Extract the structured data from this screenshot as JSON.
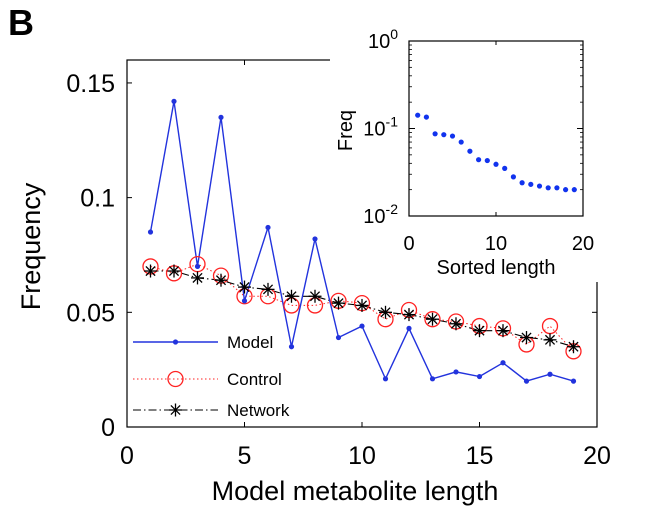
{
  "panel_label": "B",
  "chart_data": [
    {
      "type": "line",
      "xlabel": "Model metabolite length",
      "ylabel": "Frequency",
      "xlim": [
        0,
        20
      ],
      "ylim": [
        0,
        0.16
      ],
      "xticks": [
        0,
        5,
        10,
        15,
        20
      ],
      "yticks": [
        0,
        0.05,
        0.1,
        0.15
      ],
      "ytick_labels": [
        "0",
        "0.05",
        "0.1",
        "0.15"
      ],
      "grid": false,
      "legend_position": "bottom-left",
      "legend": [
        "Model",
        "Control",
        "Network"
      ],
      "x": [
        1,
        2,
        3,
        4,
        5,
        6,
        7,
        8,
        9,
        10,
        11,
        12,
        13,
        14,
        15,
        16,
        17,
        18,
        19
      ],
      "series": [
        {
          "name": "Model",
          "color": "#2233dd",
          "style": "solid line with dot markers",
          "values": [
            0.085,
            0.142,
            0.07,
            0.135,
            0.055,
            0.087,
            0.035,
            0.082,
            0.039,
            0.044,
            0.021,
            0.043,
            0.021,
            0.024,
            0.022,
            0.028,
            0.02,
            0.023,
            0.02
          ]
        },
        {
          "name": "Control",
          "color": "#ff2222",
          "style": "dotted line with circle markers",
          "values": [
            0.07,
            0.067,
            0.071,
            0.066,
            0.057,
            0.057,
            0.053,
            0.053,
            0.055,
            0.054,
            0.047,
            0.051,
            0.047,
            0.046,
            0.044,
            0.043,
            0.036,
            0.044,
            0.033
          ]
        },
        {
          "name": "Network",
          "color": "#000000",
          "style": "dash-dot line with asterisk markers",
          "values": [
            0.068,
            0.068,
            0.065,
            0.064,
            0.061,
            0.06,
            0.057,
            0.057,
            0.054,
            0.053,
            0.05,
            0.049,
            0.047,
            0.045,
            0.042,
            0.042,
            0.039,
            0.038,
            0.035
          ]
        }
      ]
    },
    {
      "type": "scatter",
      "inset": true,
      "xlabel": "Sorted length",
      "ylabel": "Freq",
      "xlim": [
        0,
        20
      ],
      "ylim": [
        0.01,
        1
      ],
      "yscale": "log",
      "xticks": [
        0,
        10,
        20
      ],
      "ytick_labels": [
        {
          "base": "10",
          "exp": "0",
          "value": 1
        },
        {
          "base": "10",
          "exp": "-1",
          "value": 0.1
        },
        {
          "base": "10",
          "exp": "-2",
          "value": 0.01
        }
      ],
      "grid": false,
      "color": "#1133ee",
      "x": [
        1,
        2,
        3,
        4,
        5,
        6,
        7,
        8,
        9,
        10,
        11,
        12,
        13,
        14,
        15,
        16,
        17,
        18,
        19
      ],
      "values": [
        0.142,
        0.135,
        0.087,
        0.085,
        0.082,
        0.07,
        0.055,
        0.044,
        0.043,
        0.039,
        0.035,
        0.028,
        0.024,
        0.023,
        0.022,
        0.021,
        0.021,
        0.02,
        0.02
      ]
    }
  ]
}
